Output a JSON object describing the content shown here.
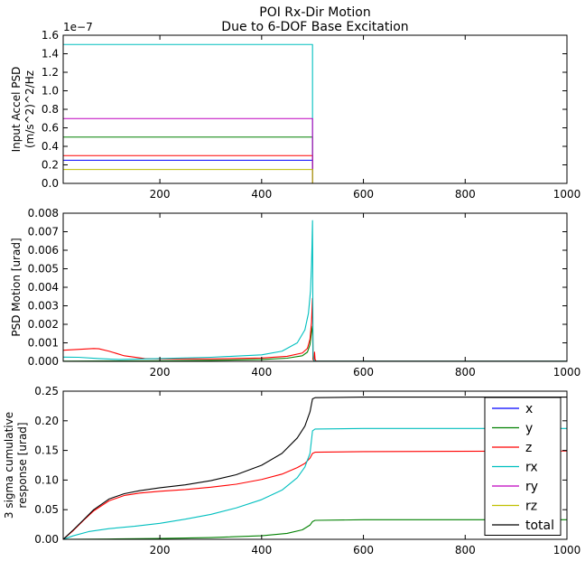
{
  "figure": {
    "title_line1": "POI Rx-Dir Motion",
    "title_line2": "Due to 6-DOF Base Excitation"
  },
  "colors": {
    "x": "#0000ff",
    "y": "#008000",
    "z": "#ff0000",
    "rx": "#00bfbf",
    "ry": "#bf00bf",
    "rz": "#bfbf00",
    "total": "#000000"
  },
  "chart_data": [
    {
      "type": "line",
      "id": "input",
      "ylabel_lines": [
        "Input Accel PSD",
        "(m/s^2)^2/Hz"
      ],
      "offset_text": "1e−7",
      "xlim": [
        10,
        1000
      ],
      "ylim": [
        0,
        1.6
      ],
      "xticks": [
        200,
        400,
        600,
        800,
        1000
      ],
      "yticks": [
        0.0,
        0.2,
        0.4,
        0.6,
        0.8,
        1.0,
        1.2,
        1.4,
        1.6
      ],
      "ytick_labels": [
        "0.0",
        "0.2",
        "0.4",
        "0.6",
        "0.8",
        "1.0",
        "1.2",
        "1.4",
        "1.6"
      ],
      "series": [
        {
          "name": "x",
          "x": [
            10,
            500,
            500,
            1000
          ],
          "y": [
            0.25,
            0.25,
            0,
            0
          ]
        },
        {
          "name": "y",
          "x": [
            10,
            500,
            500,
            1000
          ],
          "y": [
            0.5,
            0.5,
            0,
            0
          ]
        },
        {
          "name": "z",
          "x": [
            10,
            500,
            500,
            1000
          ],
          "y": [
            0.3,
            0.3,
            0,
            0
          ]
        },
        {
          "name": "rx",
          "x": [
            10,
            500,
            500,
            1000
          ],
          "y": [
            1.5,
            1.5,
            0,
            0
          ]
        },
        {
          "name": "ry",
          "x": [
            10,
            500,
            500,
            1000
          ],
          "y": [
            0.7,
            0.7,
            0,
            0
          ]
        },
        {
          "name": "rz",
          "x": [
            10,
            500,
            500,
            1000
          ],
          "y": [
            0.15,
            0.15,
            0,
            0
          ]
        }
      ]
    },
    {
      "type": "line",
      "id": "psd",
      "ylabel_lines": [
        "PSD Motion [urad]"
      ],
      "xlim": [
        10,
        1000
      ],
      "ylim": [
        0,
        0.008
      ],
      "xticks": [
        200,
        400,
        600,
        800,
        1000
      ],
      "yticks": [
        0,
        0.001,
        0.002,
        0.003,
        0.004,
        0.005,
        0.006,
        0.007,
        0.008
      ],
      "ytick_labels": [
        "0.000",
        "0.001",
        "0.002",
        "0.003",
        "0.004",
        "0.005",
        "0.006",
        "0.007",
        "0.008"
      ],
      "series": [
        {
          "name": "x",
          "x": [
            10,
            1000
          ],
          "y": [
            0,
            0
          ]
        },
        {
          "name": "ry",
          "x": [
            10,
            1000
          ],
          "y": [
            0,
            0
          ]
        },
        {
          "name": "rz",
          "x": [
            10,
            1000
          ],
          "y": [
            0,
            0
          ]
        },
        {
          "name": "y",
          "x": [
            10,
            100,
            200,
            300,
            400,
            450,
            480,
            490,
            495,
            498,
            500,
            501,
            503,
            506,
            1000
          ],
          "y": [
            1e-05,
            2e-05,
            3e-05,
            5e-05,
            0.0001,
            0.00017,
            0.0003,
            0.0005,
            0.0009,
            0.0016,
            0.0019,
            0.0001,
            3e-05,
            1e-05,
            1e-05
          ]
        },
        {
          "name": "z",
          "x": [
            10,
            50,
            70,
            80,
            100,
            130,
            170,
            200,
            300,
            400,
            450,
            480,
            490,
            495,
            498,
            500,
            501,
            503,
            504,
            505,
            507,
            510,
            600,
            1000
          ],
          "y": [
            0.0006,
            0.00066,
            0.00069,
            0.00068,
            0.00055,
            0.0003,
            0.00015,
            0.00013,
            0.00013,
            0.00018,
            0.00027,
            0.00045,
            0.0007,
            0.0012,
            0.0021,
            0.0034,
            0.0001,
            5e-05,
            0.0005,
            0.0001,
            2e-05,
            1e-05,
            1e-05,
            1e-05
          ]
        },
        {
          "name": "rx",
          "x": [
            10,
            40,
            80,
            120,
            150,
            200,
            300,
            400,
            440,
            470,
            485,
            492,
            496,
            498,
            499,
            500,
            501,
            503,
            505,
            1000
          ],
          "y": [
            0.00023,
            0.00022,
            0.00015,
            0.0001,
            0.00012,
            0.00015,
            0.00022,
            0.00035,
            0.00055,
            0.001,
            0.0017,
            0.0026,
            0.0038,
            0.0052,
            0.0063,
            0.0076,
            0.0003,
            5e-05,
            1e-05,
            1e-05
          ]
        }
      ]
    },
    {
      "type": "line",
      "id": "cumulative",
      "ylabel_lines": [
        "3 sigma cumulative",
        "response [urad]"
      ],
      "xlim": [
        10,
        1000
      ],
      "ylim": [
        0,
        0.25
      ],
      "xticks": [
        200,
        400,
        600,
        800,
        1000
      ],
      "yticks": [
        0,
        0.05,
        0.1,
        0.15,
        0.2,
        0.25
      ],
      "ytick_labels": [
        "0.00",
        "0.05",
        "0.10",
        "0.15",
        "0.20",
        "0.25"
      ],
      "legend": [
        "x",
        "y",
        "z",
        "rx",
        "ry",
        "rz",
        "total"
      ],
      "legend_loc": "right",
      "series": [
        {
          "name": "x",
          "x": [
            10,
            1000
          ],
          "y": [
            0,
            0
          ]
        },
        {
          "name": "ry",
          "x": [
            10,
            1000
          ],
          "y": [
            0,
            0
          ]
        },
        {
          "name": "rz",
          "x": [
            10,
            1000
          ],
          "y": [
            0,
            0
          ]
        },
        {
          "name": "y",
          "x": [
            10,
            100,
            200,
            300,
            400,
            450,
            480,
            495,
            500,
            505,
            600,
            1000
          ],
          "y": [
            0,
            0.0005,
            0.0015,
            0.003,
            0.006,
            0.01,
            0.016,
            0.024,
            0.03,
            0.032,
            0.033,
            0.033
          ]
        },
        {
          "name": "z",
          "x": [
            10,
            30,
            50,
            70,
            100,
            130,
            160,
            200,
            250,
            300,
            350,
            400,
            440,
            470,
            485,
            495,
            500,
            505,
            600,
            1000
          ],
          "y": [
            0,
            0.015,
            0.032,
            0.048,
            0.065,
            0.074,
            0.078,
            0.081,
            0.084,
            0.088,
            0.093,
            0.101,
            0.11,
            0.121,
            0.128,
            0.137,
            0.145,
            0.147,
            0.148,
            0.149
          ]
        },
        {
          "name": "rx",
          "x": [
            10,
            30,
            60,
            100,
            150,
            200,
            250,
            300,
            350,
            400,
            440,
            470,
            485,
            495,
            500,
            505,
            600,
            1000
          ],
          "y": [
            0,
            0.006,
            0.013,
            0.018,
            0.022,
            0.027,
            0.034,
            0.042,
            0.053,
            0.067,
            0.083,
            0.104,
            0.122,
            0.145,
            0.183,
            0.186,
            0.187,
            0.187
          ]
        },
        {
          "name": "total",
          "x": [
            10,
            30,
            50,
            70,
            100,
            130,
            160,
            200,
            250,
            300,
            350,
            400,
            440,
            470,
            485,
            495,
            500,
            505,
            600,
            1000
          ],
          "y": [
            0,
            0.016,
            0.033,
            0.05,
            0.068,
            0.077,
            0.082,
            0.087,
            0.092,
            0.099,
            0.109,
            0.125,
            0.145,
            0.171,
            0.191,
            0.215,
            0.237,
            0.239,
            0.24,
            0.24
          ]
        }
      ]
    }
  ]
}
